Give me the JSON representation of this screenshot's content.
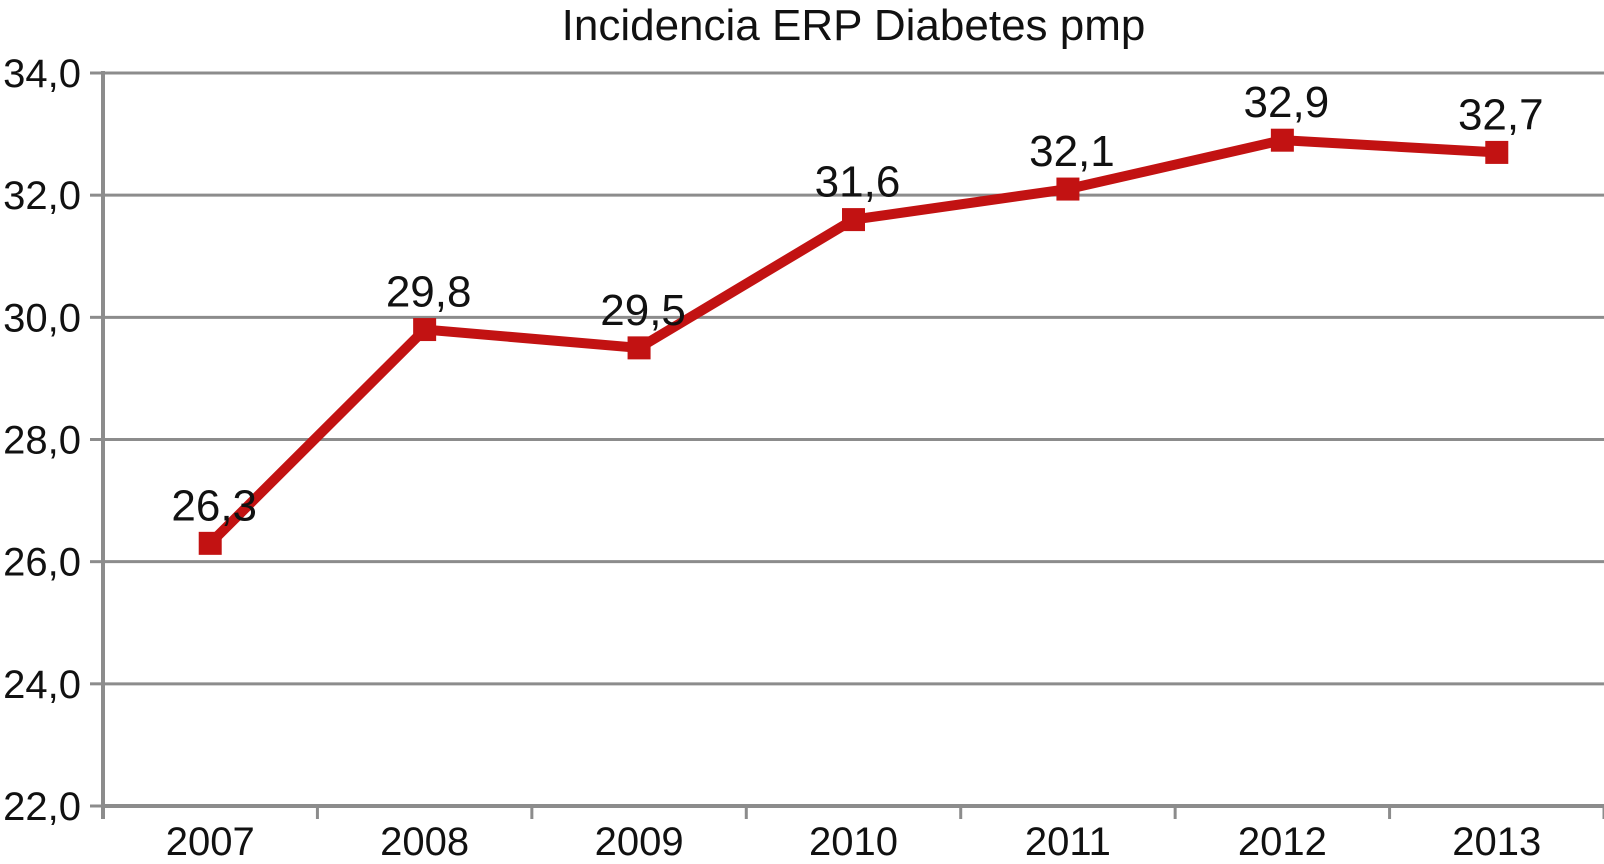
{
  "title": "Incidencia ERP Diabetes pmp",
  "colors": {
    "series": "#C21212",
    "grid": "#8C8C8C",
    "axis": "#8C8C8C",
    "text": "#111111",
    "background": "#FFFFFF"
  },
  "chart_data": {
    "type": "line",
    "title": "Incidencia ERP Diabetes pmp",
    "categories": [
      "2007",
      "2008",
      "2009",
      "2010",
      "2011",
      "2012",
      "2013"
    ],
    "values": [
      26.3,
      29.8,
      29.5,
      31.6,
      32.1,
      32.9,
      32.7
    ],
    "data_labels": [
      "26,3",
      "29,8",
      "29,5",
      "31,6",
      "32,1",
      "32,9",
      "32,7"
    ],
    "xlabel": "",
    "ylabel": "",
    "ylim": [
      22.0,
      34.0
    ],
    "yticks": [
      22.0,
      24.0,
      26.0,
      28.0,
      30.0,
      32.0,
      34.0
    ],
    "ytick_labels": [
      "22,0",
      "24,0",
      "26,0",
      "28,0",
      "30,0",
      "32,0",
      "34,0"
    ],
    "grid": "horizontal",
    "legend": "none",
    "marker": "square"
  }
}
